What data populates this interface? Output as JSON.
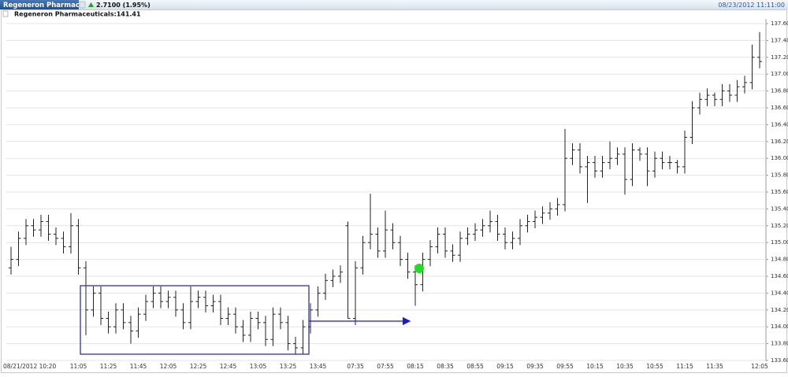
{
  "chart_data": {
    "type": "ohlc",
    "tab_label": "Regeneron Pharmac...",
    "change": "2.7100 (1.95%)",
    "timestamp": "08/23/2012 11:11:00",
    "title": "Regeneron Pharmaceuticals:141.41",
    "color": "#222222",
    "grid": true,
    "categories": [
      "08/21/2012 10:20",
      null,
      null,
      null,
      null,
      null,
      null,
      null,
      null,
      "11:05",
      null,
      null,
      null,
      "11:25",
      null,
      null,
      null,
      "11:45",
      null,
      null,
      null,
      "12:05",
      null,
      null,
      null,
      "12:25",
      null,
      null,
      null,
      "12:45",
      null,
      null,
      null,
      "13:05",
      null,
      null,
      null,
      "13:25",
      null,
      null,
      null,
      "13:45",
      null,
      null,
      null,
      null,
      "07:35",
      null,
      null,
      null,
      "07:55",
      null,
      null,
      null,
      "08:15",
      null,
      null,
      null,
      "08:35",
      null,
      null,
      null,
      "08:55",
      null,
      null,
      null,
      "09:15",
      null,
      null,
      null,
      "09:35",
      null,
      null,
      null,
      "09:55",
      null,
      null,
      null,
      "10:15",
      null,
      null,
      null,
      "10:35",
      null,
      null,
      null,
      "10:55",
      null,
      null,
      null,
      "11:15",
      null,
      null,
      null,
      "11:35",
      null,
      null,
      null,
      null,
      null,
      "12:05"
    ],
    "open": [
      134.7,
      134.8,
      135.05,
      135.2,
      135.15,
      135.25,
      135.1,
      135.05,
      134.95,
      135.2,
      134.7,
      134.2,
      134.4,
      134.1,
      134.0,
      134.2,
      134.05,
      133.95,
      134.15,
      134.3,
      134.4,
      134.3,
      134.35,
      134.2,
      134.05,
      134.3,
      134.35,
      134.25,
      134.3,
      134.1,
      134.15,
      134.0,
      133.9,
      134.1,
      134.05,
      133.85,
      134.15,
      134.05,
      133.8,
      133.75,
      134.0,
      134.2,
      134.4,
      134.55,
      134.6,
      135.2,
      134.1,
      134.7,
      135.0,
      135.1,
      134.9,
      135.15,
      135.0,
      134.8,
      134.65,
      134.5,
      134.8,
      134.95,
      135.1,
      134.9,
      134.85,
      135.05,
      135.1,
      135.15,
      135.2,
      135.25,
      135.1,
      135.0,
      135.05,
      135.2,
      135.25,
      135.3,
      135.35,
      135.4,
      135.45,
      136.0,
      136.1,
      135.9,
      135.95,
      135.85,
      135.95,
      136.0,
      136.05,
      135.75,
      136.1,
      136.05,
      135.85,
      136.0,
      135.95,
      135.95,
      135.9,
      136.25,
      136.6,
      136.7,
      136.75,
      136.7,
      136.8,
      136.75,
      136.85,
      136.9,
      137.2
    ],
    "high": [
      134.95,
      135.13,
      135.28,
      135.28,
      135.33,
      135.33,
      135.18,
      135.13,
      135.35,
      135.28,
      134.78,
      134.48,
      134.48,
      134.18,
      134.28,
      134.28,
      134.13,
      134.23,
      134.38,
      134.48,
      134.48,
      134.43,
      134.43,
      134.28,
      134.48,
      134.43,
      134.43,
      134.38,
      134.38,
      134.23,
      134.23,
      134.08,
      134.18,
      134.18,
      134.13,
      134.23,
      134.23,
      134.13,
      133.88,
      134.08,
      134.28,
      134.48,
      134.63,
      134.68,
      134.73,
      135.25,
      134.78,
      135.08,
      135.58,
      135.18,
      135.38,
      135.23,
      135.08,
      134.88,
      134.73,
      134.88,
      135.03,
      135.18,
      135.18,
      134.98,
      135.13,
      135.18,
      135.23,
      135.28,
      135.38,
      135.33,
      135.18,
      135.13,
      135.28,
      135.33,
      135.38,
      135.43,
      135.48,
      135.53,
      136.35,
      136.18,
      136.18,
      136.03,
      136.03,
      136.03,
      136.2,
      136.13,
      136.13,
      136.18,
      136.13,
      136.13,
      136.08,
      136.08,
      136.03,
      135.98,
      136.33,
      136.68,
      136.78,
      136.83,
      136.78,
      136.88,
      136.88,
      136.93,
      136.98,
      137.35,
      137.5
    ],
    "low": [
      134.62,
      134.72,
      134.97,
      135.07,
      135.07,
      135.02,
      134.97,
      134.87,
      134.87,
      134.62,
      133.9,
      134.12,
      134.02,
      133.92,
      133.92,
      133.97,
      133.8,
      133.87,
      134.07,
      134.22,
      134.22,
      134.22,
      134.12,
      133.97,
      133.97,
      134.22,
      134.17,
      134.17,
      134.02,
      134.02,
      133.92,
      133.82,
      133.82,
      133.97,
      133.77,
      133.77,
      133.97,
      133.72,
      133.67,
      133.67,
      133.92,
      134.12,
      134.32,
      134.47,
      134.52,
      134.1,
      134.02,
      134.62,
      134.92,
      134.82,
      134.82,
      134.92,
      134.72,
      134.57,
      134.25,
      134.42,
      134.72,
      134.87,
      134.82,
      134.77,
      134.77,
      134.97,
      135.02,
      135.07,
      135.12,
      135.02,
      134.92,
      134.92,
      134.97,
      135.12,
      135.17,
      135.22,
      135.27,
      135.32,
      135.37,
      135.92,
      135.82,
      135.47,
      135.77,
      135.77,
      135.87,
      135.92,
      135.57,
      135.67,
      135.97,
      135.67,
      135.77,
      135.87,
      135.87,
      135.82,
      135.82,
      136.17,
      136.52,
      136.62,
      136.62,
      136.62,
      136.67,
      136.67,
      136.77,
      136.82,
      137.07
    ],
    "close": [
      134.8,
      135.05,
      135.2,
      135.15,
      135.25,
      135.1,
      135.05,
      134.95,
      135.2,
      134.7,
      134.2,
      134.4,
      134.1,
      134.0,
      134.2,
      134.05,
      133.95,
      134.15,
      134.3,
      134.4,
      134.3,
      134.35,
      134.2,
      134.05,
      134.3,
      134.35,
      134.25,
      134.3,
      134.1,
      134.15,
      134.0,
      133.9,
      134.1,
      134.05,
      133.85,
      134.15,
      134.05,
      133.8,
      133.75,
      134.0,
      134.2,
      134.4,
      134.55,
      134.6,
      134.65,
      134.1,
      134.7,
      135.0,
      135.1,
      134.9,
      135.15,
      135.0,
      134.8,
      134.65,
      134.5,
      134.8,
      134.95,
      135.1,
      134.9,
      134.85,
      135.05,
      135.1,
      135.15,
      135.2,
      135.25,
      135.1,
      135.0,
      135.05,
      135.2,
      135.25,
      135.3,
      135.35,
      135.4,
      135.45,
      136.0,
      136.1,
      135.9,
      135.95,
      135.85,
      135.95,
      136.0,
      136.05,
      135.75,
      136.1,
      136.05,
      135.85,
      136.0,
      135.95,
      135.95,
      135.9,
      136.25,
      136.6,
      136.7,
      136.75,
      136.7,
      136.8,
      136.75,
      136.85,
      136.9,
      137.2,
      137.15
    ],
    "ylim": [
      133.6,
      137.6
    ],
    "yticks": [
      {
        "value": 133.6,
        "label": "133.60"
      },
      {
        "value": 133.8,
        "label": "133.80"
      },
      {
        "value": 134.0,
        "label": "134.00"
      },
      {
        "value": 134.2,
        "label": "134.20"
      },
      {
        "value": 134.4,
        "label": "134.40"
      },
      {
        "value": 134.6,
        "label": "134.60"
      },
      {
        "value": 134.8,
        "label": "134.80"
      },
      {
        "value": 135.0,
        "label": "135.00"
      },
      {
        "value": 135.2,
        "label": "135.20"
      },
      {
        "value": 135.4,
        "label": "135.40"
      },
      {
        "value": 135.6,
        "label": "135.60"
      },
      {
        "value": 135.8,
        "label": "135.80"
      },
      {
        "value": 136.0,
        "label": "136.00"
      },
      {
        "value": 136.2,
        "label": "136.20"
      },
      {
        "value": 136.4,
        "label": "136.40"
      },
      {
        "value": 136.6,
        "label": "136.60"
      },
      {
        "value": 136.8,
        "label": "136.80"
      },
      {
        "value": 137.0,
        "label": "137.00"
      },
      {
        "value": 137.2,
        "label": "137.20"
      },
      {
        "value": 137.4,
        "label": "137.40"
      },
      {
        "value": 137.6,
        "label": "137.60"
      }
    ]
  }
}
